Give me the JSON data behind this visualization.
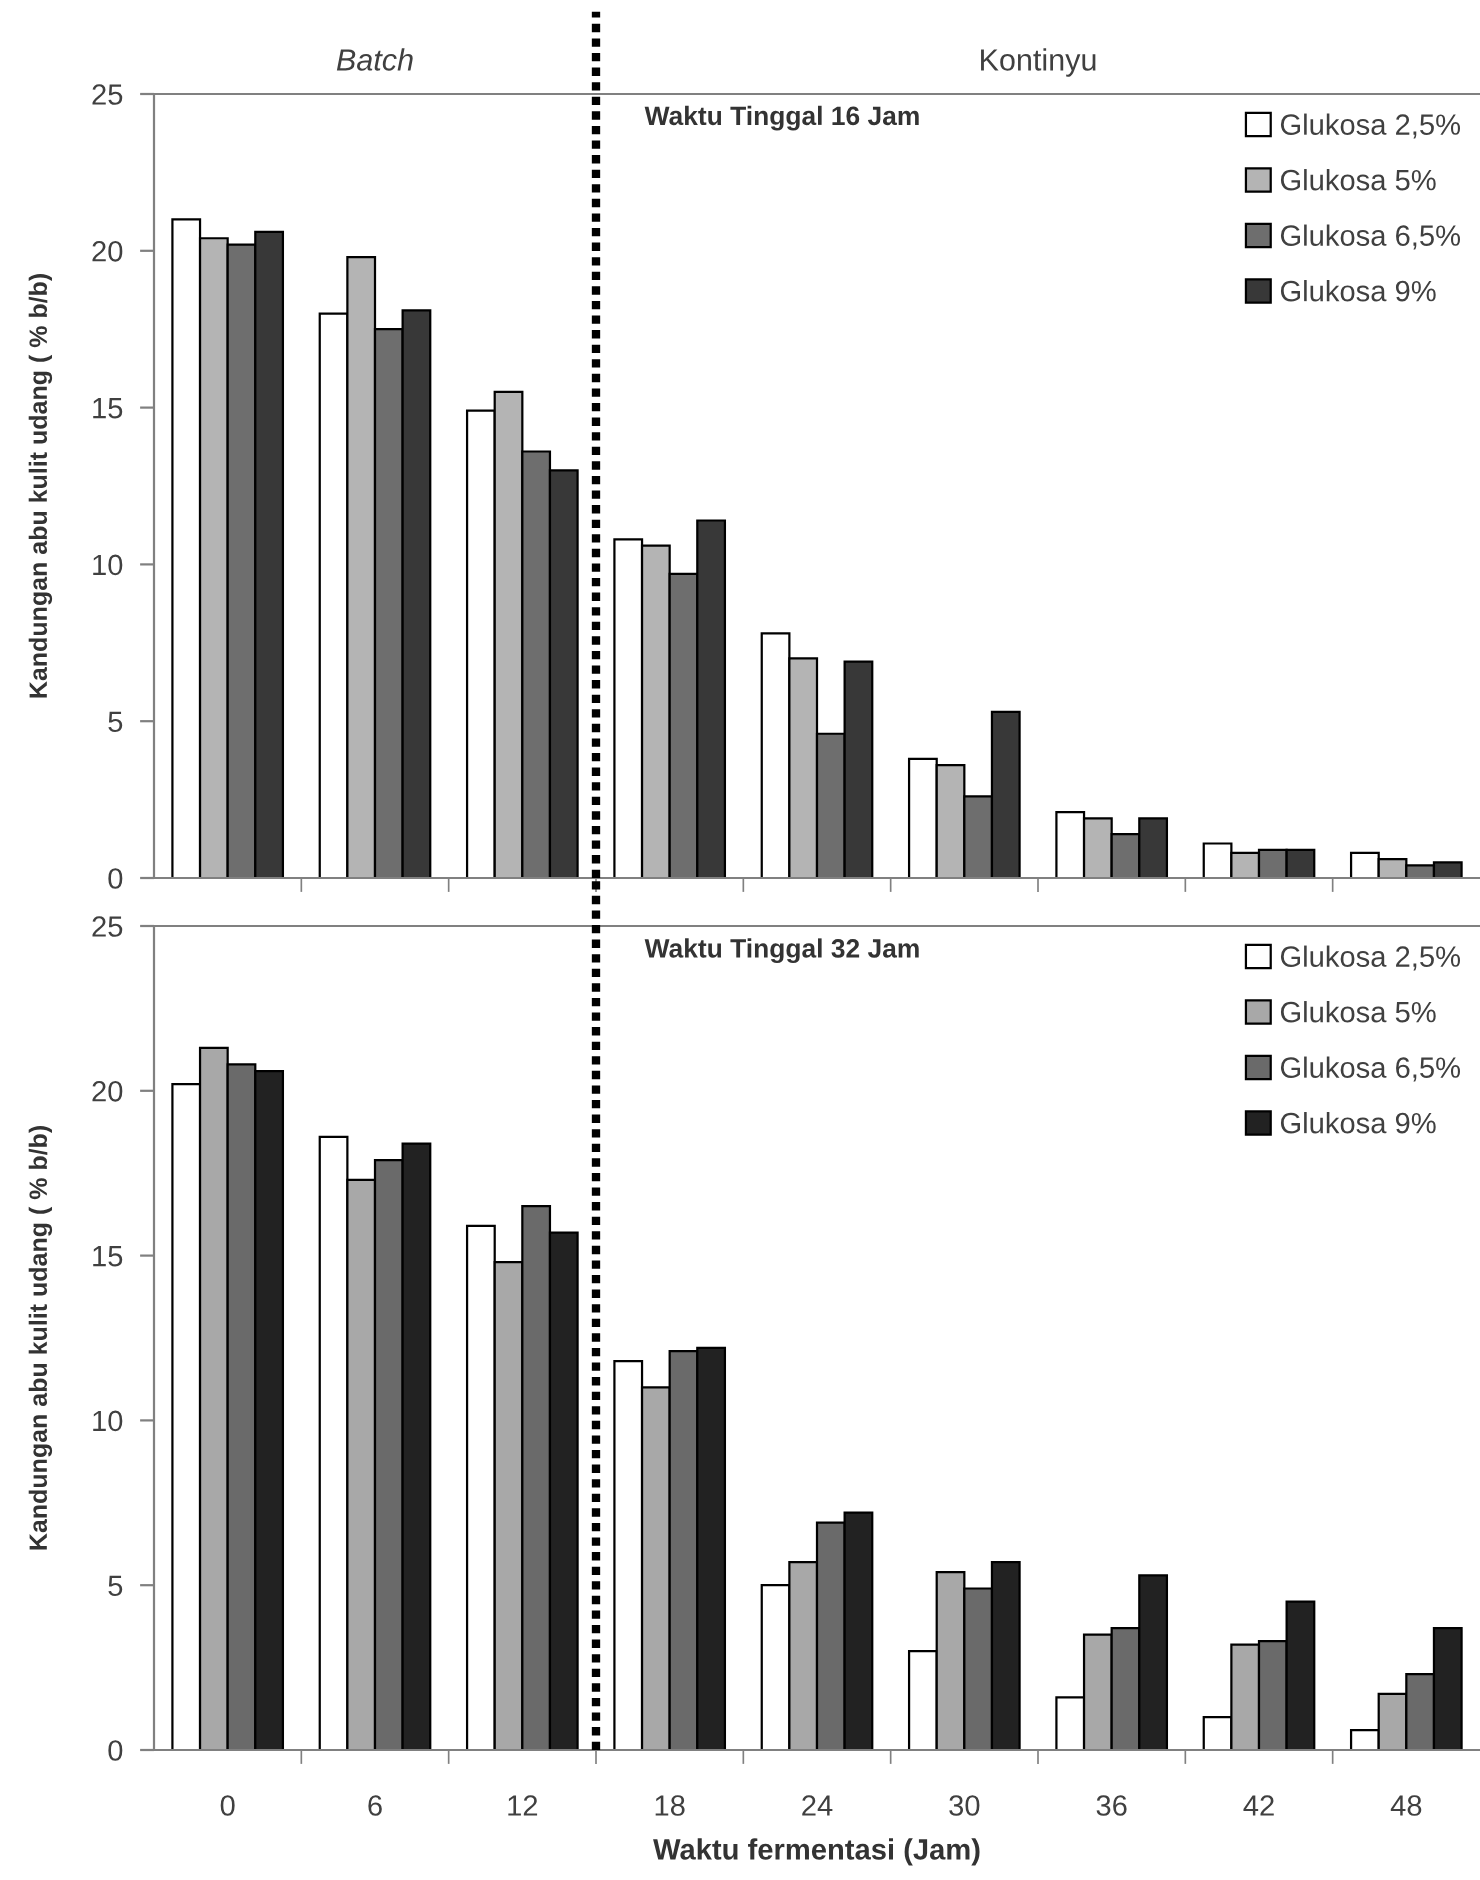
{
  "chart_data": [
    {
      "type": "bar",
      "title": "Waktu Tinggal 16 Jam",
      "ylabel": "Kandungan abu kulit udang ( % b/b)",
      "annotations": [
        "Batch",
        "Kontinyu"
      ],
      "x": [
        0,
        6,
        12,
        18,
        24,
        30,
        36,
        42,
        48
      ],
      "series": [
        {
          "name": "Glukosa 2,5%",
          "color": "#ffffff",
          "values": [
            21.0,
            18.0,
            14.9,
            10.8,
            7.8,
            3.8,
            2.1,
            1.1,
            0.8
          ]
        },
        {
          "name": "Glukosa 5%",
          "color": "#b4b4b4",
          "values": [
            20.4,
            19.8,
            15.5,
            10.6,
            7.0,
            3.6,
            1.9,
            0.8,
            0.6
          ]
        },
        {
          "name": "Glukosa 6,5%",
          "color": "#6e6e6e",
          "values": [
            20.2,
            17.5,
            13.6,
            9.7,
            4.6,
            2.6,
            1.4,
            0.9,
            0.4
          ]
        },
        {
          "name": "Glukosa 9%",
          "color": "#383838",
          "values": [
            20.6,
            18.1,
            13.0,
            11.4,
            6.9,
            5.3,
            1.9,
            0.9,
            0.5
          ]
        }
      ],
      "xlim": [
        -3,
        51
      ],
      "xticks": [
        0,
        {
          "value": 3,
          "label": null
        },
        6,
        {
          "value": 9,
          "label": null
        },
        12,
        {
          "value": 15,
          "label": null
        },
        18,
        {
          "value": 21,
          "label": null
        },
        24,
        {
          "value": 27,
          "label": null
        },
        30,
        {
          "value": 33,
          "label": null
        },
        36,
        {
          "value": 39,
          "label": null
        },
        42,
        {
          "value": 45,
          "label": null
        },
        48
      ],
      "ylim": [
        0,
        25
      ],
      "yticks": [
        0,
        5,
        10,
        15,
        20,
        25
      ],
      "ref_lines": [
        {
          "axis": "x",
          "value": 15,
          "color": "#000000",
          "line_style": "dotted"
        }
      ],
      "legend": "top right",
      "tick_labels": "y"
    },
    {
      "type": "bar",
      "title": "Waktu Tinggal 32 Jam",
      "xlabel": "Waktu fermentasi (Jam)",
      "ylabel": "Kandungan abu kulit udang ( % b/b)",
      "x": [
        0,
        6,
        12,
        18,
        24,
        30,
        36,
        42,
        48
      ],
      "series": [
        {
          "name": "Glukosa 2,5%",
          "color": "#ffffff",
          "values": [
            20.2,
            18.6,
            15.9,
            11.8,
            5.0,
            3.0,
            1.6,
            1.0,
            0.6
          ]
        },
        {
          "name": "Glukosa 5%",
          "color": "#a8a8a8",
          "values": [
            21.3,
            17.3,
            14.8,
            11.0,
            5.7,
            5.4,
            3.5,
            3.2,
            1.7
          ]
        },
        {
          "name": "Glukosa 6,5%",
          "color": "#6a6a6a",
          "values": [
            20.8,
            17.9,
            16.5,
            12.1,
            6.9,
            4.9,
            3.7,
            3.3,
            2.3
          ]
        },
        {
          "name": "Glukosa 9%",
          "color": "#222222",
          "values": [
            20.6,
            18.4,
            15.7,
            12.2,
            7.2,
            5.7,
            5.3,
            4.5,
            3.7
          ]
        }
      ],
      "xlim": [
        -3,
        51
      ],
      "xticks": [
        0,
        {
          "value": 3,
          "label": null
        },
        6,
        {
          "value": 9,
          "label": null
        },
        12,
        {
          "value": 15,
          "label": null
        },
        18,
        {
          "value": 21,
          "label": null
        },
        24,
        {
          "value": 27,
          "label": null
        },
        30,
        {
          "value": 33,
          "label": null
        },
        36,
        {
          "value": 39,
          "label": null
        },
        42,
        {
          "value": 45,
          "label": null
        },
        48
      ],
      "ylim": [
        0,
        25
      ],
      "yticks": [
        0,
        5,
        10,
        15,
        20,
        25
      ],
      "ref_lines": [
        {
          "axis": "x",
          "value": 15,
          "color": "#000000",
          "line_style": "dotted"
        }
      ],
      "legend": "top right"
    }
  ]
}
